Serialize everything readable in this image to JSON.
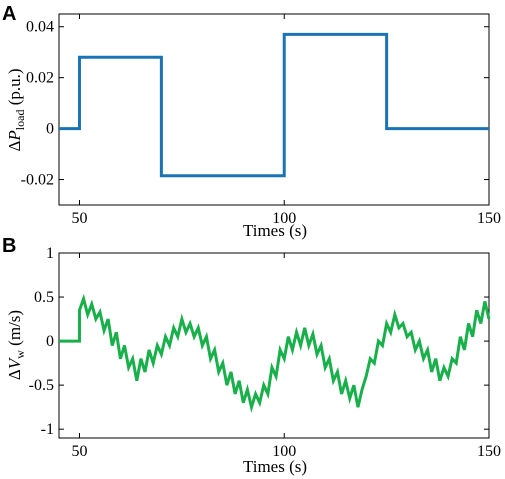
{
  "chart_data": [
    {
      "type": "line",
      "panel_label": "A",
      "xlabel": "Times (s)",
      "ylabel": {
        "delta": "Δ",
        "var": "P",
        "sub": "load",
        "unit": " (p.u.)"
      },
      "xlim": [
        45,
        150
      ],
      "ylim": [
        -0.03,
        0.045
      ],
      "xticks": [
        50,
        100,
        150
      ],
      "yticks": [
        -0.02,
        0,
        0.02,
        0.04
      ],
      "ytick_labels": [
        "-0.02",
        "0",
        "0.02",
        "0.04"
      ],
      "grid": false,
      "color": "#1a73b5",
      "series": [
        {
          "x": [
            45,
            50,
            50,
            70,
            70,
            100,
            100,
            125,
            125,
            150
          ],
          "y": [
            0,
            0,
            0.028,
            0.028,
            -0.0185,
            -0.0185,
            0.037,
            0.037,
            0,
            0
          ]
        }
      ]
    },
    {
      "type": "line",
      "panel_label": "B",
      "xlabel": "Times (s)",
      "ylabel": {
        "delta": "Δ",
        "var": "V",
        "sub": "w",
        "unit": " (m/s)"
      },
      "xlim": [
        45,
        150
      ],
      "ylim": [
        -1.1,
        1.0
      ],
      "xticks": [
        50,
        100,
        150
      ],
      "yticks": [
        -1,
        -0.5,
        0,
        0.5,
        1
      ],
      "ytick_labels": [
        "-1",
        "-0.5",
        "0",
        "0.5",
        "1"
      ],
      "grid": false,
      "color": "#19b04b",
      "series": [
        {
          "x": [
            45,
            50,
            50,
            51,
            52,
            53,
            54,
            55,
            56,
            57,
            58,
            59,
            60,
            61,
            62,
            63,
            64,
            65,
            66,
            67,
            68,
            69,
            70,
            71,
            72,
            73,
            74,
            75,
            76,
            77,
            78,
            79,
            80,
            81,
            82,
            83,
            84,
            85,
            86,
            87,
            88,
            89,
            90,
            91,
            92,
            93,
            94,
            95,
            96,
            97,
            98,
            99,
            100,
            101,
            102,
            103,
            104,
            105,
            106,
            107,
            108,
            109,
            110,
            111,
            112,
            113,
            114,
            115,
            116,
            117,
            118,
            119,
            120,
            121,
            122,
            123,
            124,
            125,
            126,
            127,
            128,
            129,
            130,
            131,
            132,
            133,
            134,
            135,
            136,
            137,
            138,
            139,
            140,
            141,
            142,
            143,
            144,
            145,
            146,
            147,
            148,
            149,
            150
          ],
          "y": [
            0,
            0,
            0.35,
            0.48,
            0.3,
            0.42,
            0.25,
            0.33,
            0.12,
            0.25,
            -0.05,
            0.1,
            -0.2,
            -0.05,
            -0.3,
            -0.2,
            -0.45,
            -0.2,
            -0.35,
            -0.1,
            -0.25,
            -0.05,
            -0.15,
            0.05,
            -0.05,
            0.15,
            0.05,
            0.25,
            0.1,
            0.2,
            0.05,
            0.15,
            -0.05,
            0.05,
            -0.2,
            -0.1,
            -0.35,
            -0.25,
            -0.5,
            -0.35,
            -0.6,
            -0.45,
            -0.7,
            -0.55,
            -0.75,
            -0.6,
            -0.7,
            -0.5,
            -0.6,
            -0.3,
            -0.4,
            -0.1,
            -0.2,
            0.05,
            -0.1,
            0.1,
            -0.05,
            0.15,
            -0.05,
            0.08,
            -0.15,
            -0.05,
            -0.3,
            -0.2,
            -0.45,
            -0.35,
            -0.6,
            -0.45,
            -0.65,
            -0.5,
            -0.75,
            -0.55,
            -0.4,
            -0.2,
            -0.25,
            0.0,
            -0.05,
            0.2,
            0.1,
            0.3,
            0.15,
            0.2,
            0.05,
            0.1,
            -0.1,
            0.0,
            -0.2,
            -0.1,
            -0.35,
            -0.2,
            -0.45,
            -0.3,
            -0.4,
            -0.2,
            -0.25,
            0.05,
            -0.1,
            0.2,
            0.05,
            0.35,
            0.2,
            0.45,
            0.25
          ]
        }
      ]
    }
  ]
}
